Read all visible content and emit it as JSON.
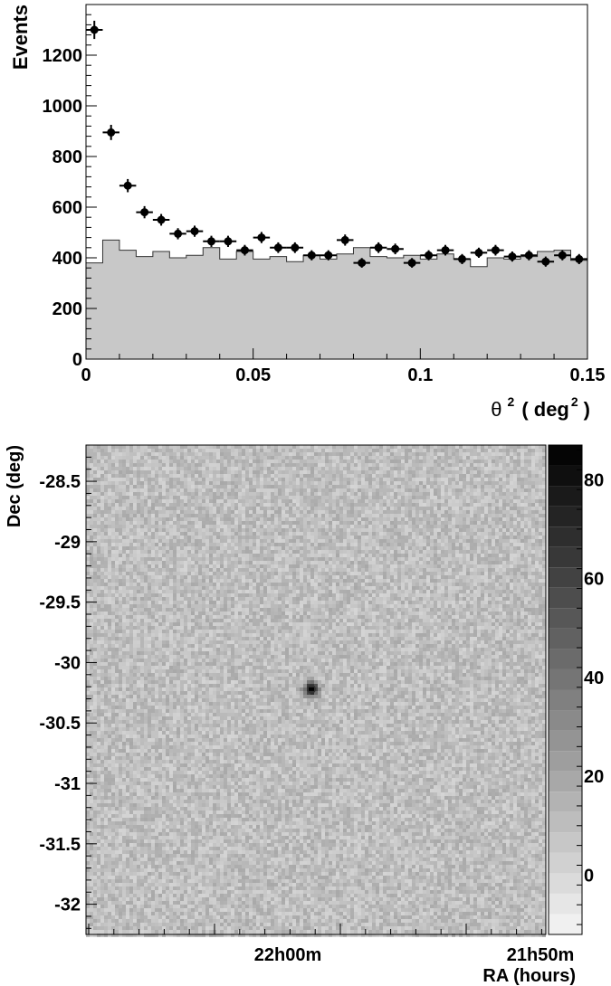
{
  "chart_data": [
    {
      "type": "bar",
      "title": "",
      "xlabel_symbol": "θ",
      "xlabel_exp": "2",
      "xlabel_open": "( deg",
      "xlabel_close": ")",
      "ylabel": "Events",
      "xlim": [
        0,
        0.15
      ],
      "ylim": [
        0,
        1400
      ],
      "bin_width": 0.005,
      "x_ticks": [
        0,
        0.05,
        0.1,
        0.15
      ],
      "x_tick_labels": [
        "0",
        "0.05",
        "0.1",
        "0.15"
      ],
      "y_ticks": [
        0,
        200,
        400,
        600,
        800,
        1000,
        1200
      ],
      "y_tick_labels": [
        "0",
        "200",
        "400",
        "600",
        "800",
        "1000",
        "1200"
      ],
      "series": [
        {
          "kind": "background-histogram",
          "color": "#c8c8c8",
          "x": [
            0.0025,
            0.0075,
            0.0125,
            0.0175,
            0.0225,
            0.0275,
            0.0325,
            0.0375,
            0.0425,
            0.0475,
            0.0525,
            0.0575,
            0.0625,
            0.0675,
            0.0725,
            0.0775,
            0.0825,
            0.0875,
            0.0925,
            0.0975,
            0.1025,
            0.1075,
            0.1125,
            0.1175,
            0.1225,
            0.1275,
            0.1325,
            0.1375,
            0.1425,
            0.1475
          ],
          "values": [
            380,
            470,
            430,
            405,
            425,
            400,
            410,
            440,
            395,
            425,
            395,
            405,
            385,
            410,
            395,
            415,
            440,
            405,
            400,
            410,
            395,
            415,
            395,
            365,
            400,
            395,
            405,
            425,
            430,
            390
          ]
        },
        {
          "kind": "on-source-points",
          "color": "#000000",
          "x": [
            0.0025,
            0.0075,
            0.0125,
            0.0175,
            0.0225,
            0.0275,
            0.0325,
            0.0375,
            0.0425,
            0.0475,
            0.0525,
            0.0575,
            0.0625,
            0.0675,
            0.0725,
            0.0775,
            0.0825,
            0.0875,
            0.0925,
            0.0975,
            0.1025,
            0.1075,
            0.1125,
            0.1175,
            0.1225,
            0.1275,
            0.1325,
            0.1375,
            0.1425,
            0.1475
          ],
          "values": [
            1300,
            895,
            685,
            580,
            550,
            495,
            505,
            465,
            465,
            430,
            480,
            440,
            440,
            410,
            410,
            470,
            380,
            440,
            435,
            380,
            410,
            430,
            395,
            420,
            430,
            405,
            410,
            385,
            410,
            395
          ],
          "errors": [
            36,
            30,
            26,
            24,
            23,
            22,
            22,
            22,
            22,
            21,
            22,
            21,
            21,
            20,
            20,
            22,
            19,
            21,
            21,
            19,
            20,
            21,
            20,
            20,
            21,
            20,
            20,
            20,
            20,
            20
          ]
        }
      ]
    },
    {
      "type": "heatmap",
      "title": "",
      "xlabel": "RA (hours)",
      "ylabel": "Dec (deg)",
      "colormap": "grayscale",
      "x_tick_labels": [
        "22h00m",
        "21h50m"
      ],
      "ylim": [
        -32.25,
        -28.2
      ],
      "y_ticks": [
        -28.5,
        -29,
        -29.5,
        -30,
        -30.5,
        -31,
        -31.5,
        -32
      ],
      "y_tick_labels": [
        "-28.5",
        "-29",
        "-29.5",
        "-30",
        "-30.5",
        "-31",
        "-31.5",
        "-32"
      ],
      "zlim": [
        -12,
        87
      ],
      "z_ticks": [
        0,
        20,
        40,
        60,
        80
      ],
      "z_tick_labels": [
        "0",
        "20",
        "40",
        "60",
        "80"
      ],
      "source_dec": -30.22,
      "source_peak": 80,
      "background_level": 10
    }
  ]
}
